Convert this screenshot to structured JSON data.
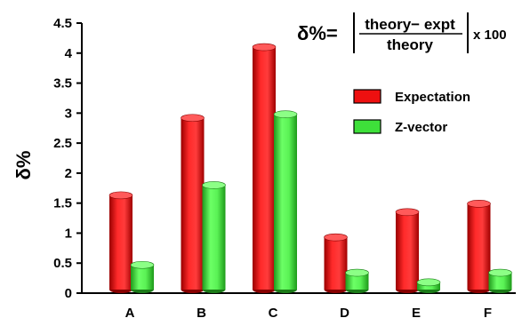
{
  "chart_data": {
    "type": "bar",
    "title": "",
    "xlabel": "",
    "ylabel": "δ%",
    "ylim": [
      0,
      4.5
    ],
    "yticks": [
      "0",
      "0.5",
      "1",
      "1.5",
      "2",
      "2.5",
      "3",
      "3.5",
      "4",
      "4.5"
    ],
    "categories": [
      "A",
      "B",
      "C",
      "D",
      "E",
      "F"
    ],
    "series": [
      {
        "name": "Expectation",
        "color": "#ee1010",
        "values": [
          1.63,
          2.92,
          4.1,
          0.93,
          1.35,
          1.49
        ]
      },
      {
        "name": "Z-vector",
        "color": "#3ee03a",
        "values": [
          0.47,
          1.8,
          2.98,
          0.34,
          0.18,
          0.34
        ]
      }
    ],
    "legend_position": "right",
    "grid": false
  },
  "formula": {
    "lhs": "δ%=",
    "numerator": "theory− expt",
    "denominator": "theory",
    "multiplier": "x 100"
  }
}
